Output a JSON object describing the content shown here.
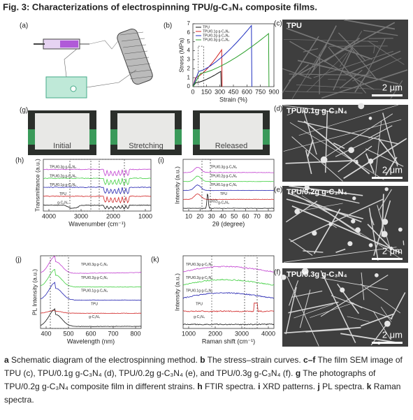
{
  "title": "Fig. 3: Characterizations of electrospinning TPU/g-C₃N₄ composite films.",
  "panels": {
    "a": {
      "label": "(a)"
    },
    "b": {
      "label": "(b)",
      "legend": [
        "TPU",
        "TPU/0.1g g-C₃N₄",
        "TPU/0.2g g-C₃N₄",
        "TPU/0.3g g-C₃N₄"
      ],
      "ylabel": "Stress (MPa)",
      "xlabel": "Strain (%)",
      "xticks": [
        "0",
        "150",
        "300",
        "450",
        "600",
        "750",
        "900"
      ],
      "yticks": [
        "0",
        "1",
        "2",
        "3",
        "4",
        "5",
        "6",
        "7"
      ]
    },
    "c": {
      "label": "(c)",
      "name": "TPU",
      "scale": "2 μm"
    },
    "d": {
      "label": "(d)",
      "name": "TPU/0.1g g-C₃N₄",
      "scale": "2 μm"
    },
    "e": {
      "label": "(e)",
      "name": "TPU/0.2g g-C₃N₄",
      "scale": "2 μm"
    },
    "f": {
      "label": "(f)",
      "name": "TPU/0.3g g-C₃N₄",
      "scale": "2 μm"
    },
    "g": {
      "label": "(g)",
      "photos": [
        "Initial",
        "Stretching",
        "Released"
      ]
    },
    "h": {
      "label": "(h)",
      "series": [
        "TPU/0.3g g-C₃N₄",
        "TPU/0.2g g-C₃N₄",
        "TPU/0.1g g-C₃N₄",
        "TPU",
        "g-C₃N₄"
      ],
      "ylabel": "Transmittance (a.u.)",
      "xlabel": "Wavenumber (cm⁻¹)",
      "xticks": [
        "4000",
        "3000",
        "2000",
        "1000"
      ]
    },
    "i": {
      "label": "(i)",
      "series": [
        "TPU/0.3g g-C₃N₄",
        "TPU/0.2g g-C₃N₄",
        "TPU/0.1g g-C₃N₄",
        "TPU",
        "g-C₃N₄"
      ],
      "peak": "(002)",
      "ylabel": "Intensity (a.u.)",
      "xlabel": "2θ (degree)",
      "xticks": [
        "10",
        "20",
        "30",
        "40",
        "50",
        "60",
        "70",
        "80"
      ]
    },
    "j": {
      "label": "(j)",
      "series": [
        "TPU/0.3g g-C₃N₄",
        "TPU/0.2g g-C₃N₄",
        "TPU/0.1g g-C₃N₄",
        "TPU",
        "g-C₃N₄"
      ],
      "ylabel": "PL Intensity (a.u.)",
      "xlabel": "Wavelength (nm)",
      "xticks": [
        "400",
        "500",
        "600",
        "700",
        "800"
      ]
    },
    "k": {
      "label": "(k)",
      "series": [
        "TPU/0.3g g-C₃N₄",
        "TPU/0.2g g-C₃N₄",
        "TPU/0.1g g-C₃N₄",
        "TPU",
        "g-C₃N₄"
      ],
      "ylabel": "Intensity (a.u.)",
      "xlabel": "Raman shift (cm⁻¹)",
      "xticks": [
        "1000",
        "2000",
        "3000",
        "4000"
      ]
    }
  },
  "caption": [
    {
      "key": "a",
      "text": "Schematic diagram of the electrospinning method."
    },
    {
      "key": "b",
      "text": "The stress–strain curves."
    },
    {
      "key": "c–f",
      "text": "The film SEM image of TPU (c), TPU/0.1g g-C₃N₄ (d), TPU/0.2g g-C₃N₄ (e), and TPU/0.3g g-C₃N₄ (f)."
    },
    {
      "key": "g",
      "text": "The photographs of TPU/0.2g g-C₃N₄ composite film in different strains."
    },
    {
      "key": "h",
      "text": "FTIR spectra."
    },
    {
      "key": "i",
      "text": "XRD patterns."
    },
    {
      "key": "j",
      "text": "PL spectra."
    },
    {
      "key": "k",
      "text": "Raman spectra."
    }
  ]
}
